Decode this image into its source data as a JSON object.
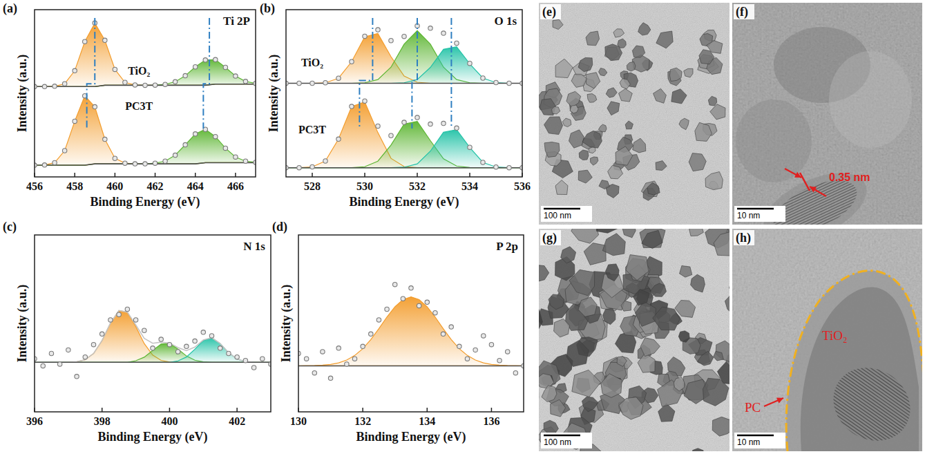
{
  "chart_data": [
    {
      "type": "line",
      "label": "(a)",
      "title": "Ti 2P",
      "x_label": "Binding Energy (eV)",
      "y_label": "Intensity (a.u.)",
      "xlim": [
        456,
        467
      ],
      "xticks": [
        456,
        458,
        460,
        462,
        464,
        466
      ],
      "ylim": [
        0,
        100
      ],
      "yticks": [],
      "tick_labels": "x",
      "grid": false,
      "x": [
        456,
        456.5,
        457,
        457.5,
        458,
        458.5,
        459,
        459.5,
        460,
        460.5,
        461,
        461.5,
        462,
        462.5,
        463,
        463.5,
        464,
        464.5,
        465,
        465.5,
        466,
        466.5,
        467
      ],
      "series": [
        {
          "type": "line",
          "color": "#4d4d4d",
          "values": [
            54,
            54,
            54,
            54,
            54,
            54,
            54,
            54.8,
            54.8,
            54.8,
            54.8,
            54.8,
            54.8,
            54.8,
            54.8,
            54.8,
            54.8,
            54.8,
            55.5,
            55.5,
            55.5,
            55.5,
            55.5
          ]
        },
        {
          "type": "area",
          "color": "#f39c2b",
          "values": [
            54,
            54,
            54.2,
            55.7,
            63.5,
            80.9,
            92,
            81.7,
            64.3,
            56.5,
            55.0,
            54.8,
            54.8,
            54.8,
            54.8,
            54.8,
            54.8,
            54.8,
            55.5,
            55.5,
            55.5,
            55.5,
            55.5
          ]
        },
        {
          "type": "area",
          "color": "#5cb531",
          "values": [
            54,
            54,
            54,
            54,
            54,
            54,
            54,
            54.8,
            54.8,
            54.8,
            54.8,
            54.8,
            54.9,
            55.3,
            56.9,
            60.5,
            65.8,
            69.9,
            70.1,
            65.5,
            60.3,
            57.1,
            55.9
          ]
        },
        {
          "type": "scatter",
          "color": "#7a7a7a",
          "marker": "circle",
          "values": [
            54,
            54,
            54.2,
            55.7,
            63.5,
            80.9,
            92,
            81.7,
            64.3,
            56.5,
            55.0,
            54.8,
            54.9,
            55.3,
            56.9,
            60.5,
            65.8,
            69.9,
            70.1,
            65.5,
            60.3,
            57.1,
            55.9
          ]
        },
        {
          "type": "line",
          "color": "#4d4d4d",
          "values": [
            7,
            7,
            7,
            7,
            7,
            7,
            7.8,
            7.8,
            7.8,
            7.8,
            7.8,
            7.8,
            7.8,
            7.8,
            7.8,
            7.8,
            7.8,
            8.5,
            8.5,
            8.5,
            8.5,
            8.5,
            8.5
          ]
        },
        {
          "type": "area",
          "color": "#f39c2b",
          "values": [
            7,
            7.1,
            8.5,
            15.7,
            33.3,
            48.5,
            41.9,
            22.5,
            11.1,
            8.2,
            7.8,
            7.8,
            7.8,
            7.8,
            7.8,
            7.8,
            7.8,
            8.5,
            8.5,
            8.5,
            8.5,
            8.5,
            8.5
          ]
        },
        {
          "type": "area",
          "color": "#5cb531",
          "values": [
            7,
            7,
            7,
            7,
            7,
            7,
            7.8,
            7.8,
            7.8,
            7.8,
            7.8,
            7.8,
            8.2,
            9.4,
            13.0,
            19.2,
            25.7,
            28.4,
            24.1,
            17.2,
            11.9,
            9.4,
            8.7
          ]
        },
        {
          "type": "scatter",
          "color": "#7a7a7a",
          "marker": "circle",
          "values": [
            7,
            7.1,
            8.5,
            15.7,
            33.3,
            48.5,
            41.9,
            22.5,
            11.1,
            8.2,
            7.8,
            7.8,
            8.2,
            9.4,
            13.0,
            19.2,
            25.7,
            28.4,
            24.1,
            17.2,
            11.9,
            9.4,
            8.7
          ]
        }
      ],
      "annotations": [
        {
          "text": "TiO₂",
          "x": 461.2,
          "y": 61
        },
        {
          "text": "PC3T",
          "x": 461.2,
          "y": 40
        }
      ],
      "peak_shifts": [
        [
          459.0,
          458.6
        ],
        [
          464.7,
          464.4
        ]
      ]
    },
    {
      "type": "line",
      "label": "(b)",
      "title": "O 1s",
      "x_label": "Binding Energy (eV)",
      "y_label": "Intensity (a.u.)",
      "xlim": [
        527,
        536
      ],
      "xticks": [
        528,
        530,
        532,
        534,
        536
      ],
      "ylim": [
        0,
        100
      ],
      "yticks": [],
      "tick_labels": "x",
      "grid": false,
      "x": [
        527,
        527.5,
        528,
        528.5,
        529,
        529.5,
        530,
        530.5,
        531,
        531.5,
        532,
        532.5,
        533,
        533.5,
        534,
        534.5,
        535,
        535.5,
        536
      ],
      "series": [
        {
          "type": "line",
          "color": "#4d4d4d",
          "values": [
            56,
            56,
            56,
            56,
            56,
            56,
            56,
            56,
            56,
            56,
            56,
            56,
            56,
            56,
            56,
            56,
            56,
            56,
            56
          ]
        },
        {
          "type": "area",
          "color": "#f39c2b",
          "values": [
            56,
            56,
            56,
            56.3,
            59.0,
            68.9,
            83.8,
            85.8,
            71.9,
            60.3,
            56.6,
            56,
            56,
            56,
            56,
            56,
            56,
            56,
            56
          ]
        },
        {
          "type": "area",
          "color": "#5cb531",
          "values": [
            56,
            56,
            56,
            56,
            56,
            56,
            56.3,
            58.2,
            65.6,
            79.4,
            87.5,
            79.4,
            65.6,
            58.2,
            56.3,
            56,
            56,
            56,
            56
          ]
        },
        {
          "type": "area",
          "color": "#21c2a6",
          "values": [
            56,
            56,
            56,
            56,
            56,
            56,
            56,
            56,
            56,
            56.3,
            58.2,
            65.5,
            76.3,
            77.8,
            67.6,
            59.1,
            56.4,
            56,
            56
          ]
        },
        {
          "type": "scatter",
          "color": "#7a7a7a",
          "marker": "circle",
          "values": [
            56,
            56,
            56,
            56.3,
            59.0,
            68.9,
            84.1,
            88.0,
            81.5,
            84.0,
            90.3,
            88.9,
            85.9,
            80.0,
            67.9,
            59.1,
            56.4,
            56,
            56
          ]
        },
        {
          "type": "line",
          "color": "#4d4d4d",
          "values": [
            5.5,
            5.5,
            5.5,
            5.5,
            5.5,
            5.5,
            5.5,
            5.5,
            5.5,
            5.5,
            5.5,
            5.5,
            5.5,
            5.5,
            5.5,
            5.5,
            5.5,
            5.5,
            5.5
          ]
        },
        {
          "type": "area",
          "color": "#f39c2b",
          "values": [
            5.5,
            5.5,
            6.0,
            9.5,
            22.6,
            42.1,
            44.8,
            26.5,
            11.1,
            6.2,
            5.5,
            5.5,
            5.5,
            5.5,
            5.5,
            5.5,
            5.5,
            5.5,
            5.5
          ]
        },
        {
          "type": "area",
          "color": "#5cb531",
          "values": [
            5.5,
            5.5,
            5.5,
            5.5,
            5.5,
            5.5,
            6.1,
            9.4,
            19.1,
            31.6,
            33.2,
            21.7,
            10.8,
            6.5,
            5.6,
            5.5,
            5.5,
            5.5,
            5.5
          ]
        },
        {
          "type": "area",
          "color": "#21c2a6",
          "values": [
            5.5,
            5.5,
            5.5,
            5.5,
            5.5,
            5.5,
            5.5,
            5.5,
            5.5,
            5.8,
            7.8,
            15.4,
            26.7,
            28.2,
            17.6,
            8.7,
            5.9,
            5.5,
            5.5
          ]
        },
        {
          "type": "scatter",
          "color": "#7a7a7a",
          "marker": "circle",
          "values": [
            5.5,
            5.5,
            6.0,
            9.5,
            22.6,
            42.1,
            45.4,
            30.4,
            24.7,
            32.6,
            35.5,
            31.6,
            32.0,
            29.2,
            17.7,
            8.7,
            5.9,
            5.5,
            5.5
          ]
        }
      ],
      "annotations": [
        {
          "text": "TiO₂",
          "x": 528.0,
          "y": 66
        },
        {
          "text": "PC3T",
          "x": 528.0,
          "y": 26
        }
      ],
      "peak_shifts": [
        [
          530.3,
          529.8
        ],
        [
          532.0,
          531.8
        ],
        [
          533.3,
          533.3
        ]
      ]
    },
    {
      "type": "line",
      "label": "(c)",
      "title": "N 1s",
      "x_label": "Binding Energy (eV)",
      "y_label": "Intensity (a.u.)",
      "xlim": [
        396,
        403
      ],
      "xticks": [
        396,
        398,
        400,
        402
      ],
      "ylim": [
        0,
        100
      ],
      "yticks": [],
      "tick_labels": "x",
      "grid": false,
      "x": [
        396,
        396.25,
        396.5,
        396.75,
        397,
        397.25,
        397.5,
        397.75,
        398,
        398.25,
        398.5,
        398.75,
        399,
        399.25,
        399.5,
        399.75,
        400,
        400.25,
        400.5,
        400.75,
        401,
        401.25,
        401.5,
        401.75,
        402,
        402.25,
        402.5,
        402.75,
        403
      ],
      "series": [
        {
          "type": "line",
          "color": "#c4c4c4",
          "values": [
            28,
            28,
            28,
            28,
            28,
            28.3,
            29.5,
            33.0,
            40.3,
            50.2,
            57.3,
            56.4,
            49.1,
            41.5,
            38.8,
            39.4,
            38.9,
            36.3,
            34.6,
            36.6,
            40.6,
            41.9,
            38.6,
            33.4,
            29.9,
            28.4,
            28.1,
            28,
            28
          ]
        },
        {
          "type": "line",
          "color": "#4d4d4d",
          "values": [
            28,
            28,
            28,
            28,
            28,
            28,
            28,
            28,
            28,
            28,
            28,
            28,
            28,
            28,
            28,
            28,
            28,
            28,
            28,
            28,
            28,
            28,
            28,
            28,
            28,
            28,
            28,
            28,
            28
          ]
        },
        {
          "type": "area",
          "color": "#f39c2b",
          "values": [
            28,
            28,
            28,
            28,
            28,
            28.3,
            29.5,
            33.0,
            40.3,
            50.2,
            57.3,
            56.4,
            48.2,
            38.6,
            32.1,
            29.1,
            28.2,
            28,
            28,
            28,
            28,
            28,
            28,
            28,
            28,
            28,
            28,
            28,
            28
          ]
        },
        {
          "type": "area",
          "color": "#5cb531",
          "values": [
            28,
            28,
            28,
            28,
            28,
            28,
            28,
            28,
            28,
            28,
            28,
            28,
            28.9,
            30.9,
            34.7,
            38.3,
            38.7,
            35.5,
            31.6,
            29.2,
            28.3,
            28,
            28,
            28,
            28,
            28,
            28,
            28,
            28
          ]
        },
        {
          "type": "area",
          "color": "#21c2a6",
          "values": [
            28,
            28,
            28,
            28,
            28,
            28,
            28,
            28,
            28,
            28,
            28,
            28,
            28,
            28,
            28,
            28,
            28,
            28.8,
            31.0,
            35.4,
            40.3,
            41.9,
            38.6,
            33.4,
            29.9,
            28.4,
            28.1,
            28,
            28
          ]
        },
        {
          "type": "scatter",
          "color": "#7a7a7a",
          "marker": "circle",
          "values": [
            30,
            26,
            33,
            27,
            35,
            20,
            31,
            38,
            44,
            52,
            55,
            58,
            52,
            46,
            36,
            41,
            38,
            34,
            37,
            40,
            45,
            43,
            36,
            33,
            31,
            29,
            25,
            30,
            27
          ]
        }
      ]
    },
    {
      "type": "line",
      "label": "(d)",
      "title": "P 2p",
      "x_label": "Binding Energy (eV)",
      "y_label": "Intensity (a.u.)",
      "xlim": [
        130,
        137
      ],
      "xticks": [
        130,
        132,
        134,
        136
      ],
      "ylim": [
        0,
        100
      ],
      "yticks": [],
      "tick_labels": "x",
      "grid": false,
      "x": [
        130,
        130.25,
        130.5,
        130.75,
        131,
        131.25,
        131.5,
        131.75,
        132,
        132.25,
        132.5,
        132.75,
        133,
        133.25,
        133.5,
        133.75,
        134,
        134.25,
        134.5,
        134.75,
        135,
        135.25,
        135.5,
        135.75,
        136,
        136.25,
        136.5,
        136.75,
        137
      ],
      "series": [
        {
          "type": "line",
          "color": "#4d4d4d",
          "values": [
            26,
            26,
            26,
            26,
            26,
            26,
            26,
            26,
            26,
            26,
            26,
            26,
            26,
            26,
            26,
            26,
            26,
            26,
            26,
            26,
            26,
            26,
            26,
            26,
            26,
            26,
            26,
            26,
            26
          ]
        },
        {
          "type": "area",
          "color": "#f39c2b",
          "values": [
            26.0,
            26.1,
            26.2,
            26.4,
            26.8,
            27.7,
            29.3,
            31.9,
            35.7,
            40.9,
            47.0,
            53.6,
            59.4,
            63.5,
            65.0,
            63.5,
            59.4,
            53.6,
            47.0,
            40.9,
            35.7,
            31.9,
            29.3,
            27.7,
            26.8,
            26.4,
            26.2,
            26.1,
            26.0
          ]
        },
        {
          "type": "scatter",
          "color": "#7a7a7a",
          "marker": "circle",
          "values": [
            33,
            30,
            22,
            34,
            19,
            36,
            27,
            30,
            37,
            44,
            52,
            58,
            72,
            64,
            70,
            60,
            62,
            56,
            44,
            48,
            37,
            30,
            35,
            43,
            38,
            29,
            34,
            22,
            26
          ]
        }
      ]
    }
  ],
  "images": [
    {
      "label": "(e)",
      "scale_bar": "100 nm"
    },
    {
      "label": "(f)",
      "scale_bar": "10 nm",
      "annotations": [
        "0.35 nm"
      ]
    },
    {
      "label": "(g)",
      "scale_bar": "100 nm"
    },
    {
      "label": "(h)",
      "scale_bar": "10 nm",
      "annotations": [
        "TiO₂",
        "PC"
      ]
    }
  ]
}
